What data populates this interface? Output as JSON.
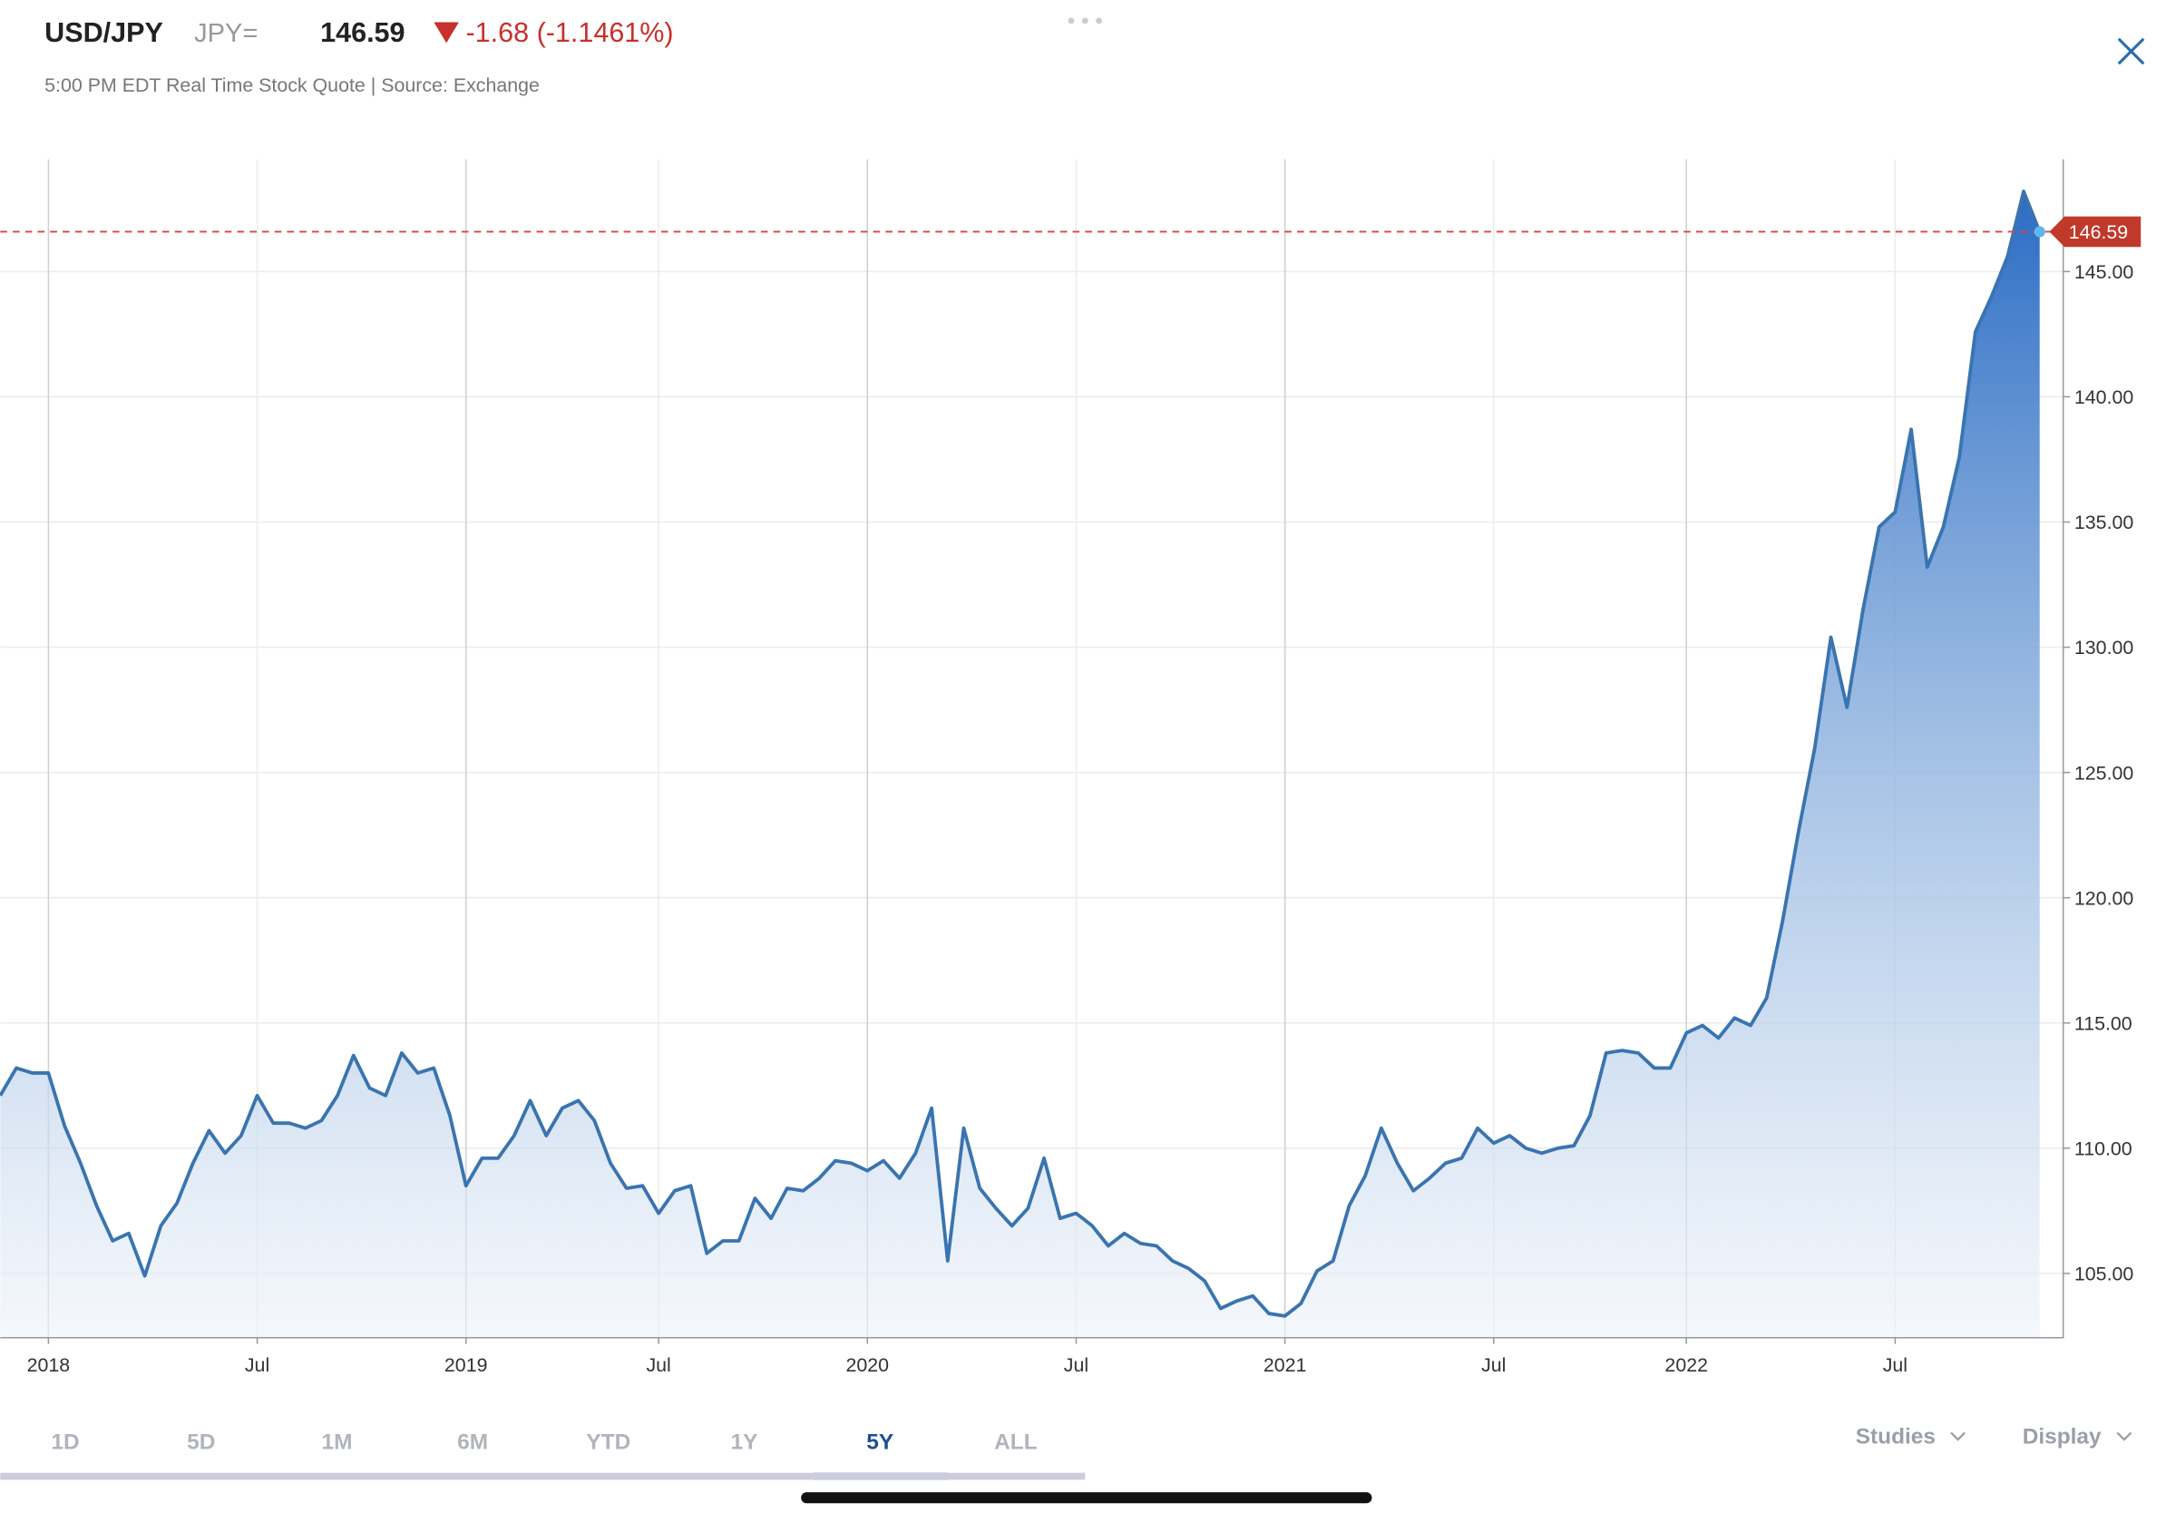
{
  "header": {
    "symbol": "USD/JPY",
    "ric": "JPY=",
    "price": "146.59",
    "change": "-1.68 (-1.1461%)",
    "subtitle": "5:00 PM EDT Real Time Stock Quote | Source: Exchange"
  },
  "chart_data": {
    "type": "area",
    "color": "#3a74b0",
    "categories": [
      null,
      null,
      null,
      "2018",
      null,
      null,
      null,
      null,
      null,
      null,
      null,
      null,
      null,
      null,
      null,
      null,
      "Jul",
      null,
      null,
      null,
      null,
      null,
      null,
      null,
      null,
      null,
      null,
      null,
      null,
      "2019",
      null,
      null,
      null,
      null,
      null,
      null,
      null,
      null,
      null,
      null,
      null,
      "Jul",
      null,
      null,
      null,
      null,
      null,
      null,
      null,
      null,
      null,
      null,
      null,
      null,
      "2020",
      null,
      null,
      null,
      null,
      null,
      null,
      null,
      null,
      null,
      null,
      null,
      null,
      "Jul",
      null,
      null,
      null,
      null,
      null,
      null,
      null,
      null,
      null,
      null,
      null,
      null,
      "2021",
      null,
      null,
      null,
      null,
      null,
      null,
      null,
      null,
      null,
      null,
      null,
      null,
      "Jul",
      null,
      null,
      null,
      null,
      null,
      null,
      null,
      null,
      null,
      null,
      null,
      "2022",
      null,
      null,
      null,
      null,
      null,
      null,
      null,
      null,
      null,
      null,
      null,
      null,
      "Jul",
      null,
      null,
      null,
      null,
      null,
      null,
      null,
      null,
      null
    ],
    "values": [
      112.1,
      113.2,
      113.0,
      113.0,
      110.9,
      109.4,
      107.7,
      106.3,
      106.6,
      104.9,
      106.9,
      107.8,
      109.4,
      110.7,
      109.8,
      110.5,
      112.1,
      111.0,
      111.0,
      110.8,
      111.1,
      112.1,
      113.7,
      112.4,
      112.1,
      113.8,
      113.0,
      113.2,
      111.3,
      108.5,
      109.6,
      109.6,
      110.5,
      111.9,
      110.5,
      111.6,
      111.9,
      111.1,
      109.4,
      108.4,
      108.5,
      107.4,
      108.3,
      108.5,
      105.8,
      106.3,
      106.3,
      108.0,
      107.2,
      108.4,
      108.3,
      108.8,
      109.5,
      109.4,
      109.1,
      109.5,
      108.8,
      109.8,
      111.6,
      105.5,
      110.8,
      108.4,
      107.6,
      106.9,
      107.6,
      109.6,
      107.2,
      107.4,
      106.9,
      106.1,
      106.6,
      106.2,
      106.1,
      105.5,
      105.2,
      104.7,
      103.6,
      103.9,
      104.1,
      103.4,
      103.3,
      103.8,
      105.1,
      105.5,
      107.7,
      108.9,
      110.8,
      109.4,
      108.3,
      108.8,
      109.4,
      109.6,
      110.8,
      110.2,
      110.5,
      110.0,
      109.8,
      110.0,
      110.1,
      111.3,
      113.8,
      113.9,
      113.8,
      113.2,
      113.2,
      114.6,
      114.9,
      114.4,
      115.2,
      114.9,
      116.0,
      119.1,
      122.7,
      126.0,
      130.4,
      127.6,
      131.5,
      134.8,
      135.4,
      138.7,
      133.2,
      134.8,
      137.6,
      142.6,
      144.0,
      145.6,
      148.2,
      146.59
    ],
    "ylim": [
      102.46,
      149.48
    ],
    "yticks": [
      {
        "value": 105,
        "label": "105.00"
      },
      {
        "value": 110,
        "label": "110.00"
      },
      {
        "value": 115,
        "label": "115.00"
      },
      {
        "value": 120,
        "label": "120.00"
      },
      {
        "value": 125,
        "label": "125.00"
      },
      {
        "value": 130,
        "label": "130.00"
      },
      {
        "value": 135,
        "label": "135.00"
      },
      {
        "value": 140,
        "label": "140.00"
      },
      {
        "value": 145,
        "label": "145.00"
      }
    ],
    "grid": true
  },
  "ranges": [
    "1D",
    "5D",
    "1M",
    "6M",
    "YTD",
    "1Y",
    "5Y",
    "ALL"
  ],
  "selected_range": 6,
  "menus": [
    "Studies",
    "Display"
  ]
}
